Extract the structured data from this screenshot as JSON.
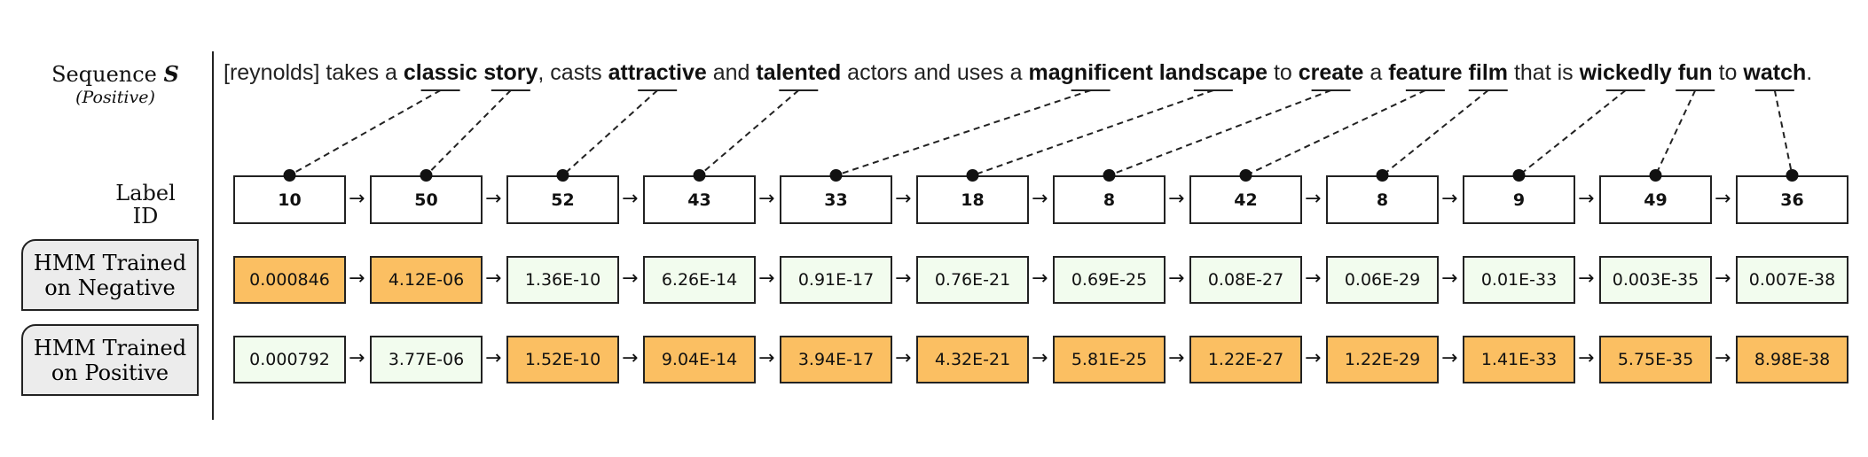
{
  "row_labels": {
    "sequence_main": "Sequence",
    "sequence_symbol": "S",
    "sequence_sub": "(Positive)",
    "label_id_line1": "Label",
    "label_id_line2": "ID",
    "hmm_negative_line1": "HMM Trained",
    "hmm_negative_line2": "on Negative",
    "hmm_positive_line1": "HMM Trained",
    "hmm_positive_line2": "on Positive"
  },
  "sentence": [
    {
      "text": "[reynolds] takes a ",
      "bold": false
    },
    {
      "text": "classic",
      "bold": true,
      "link": 0
    },
    {
      "text": " ",
      "bold": false
    },
    {
      "text": "story",
      "bold": true,
      "link": 1
    },
    {
      "text": ", casts ",
      "bold": false
    },
    {
      "text": "attractive",
      "bold": true,
      "link": 2
    },
    {
      "text": " and ",
      "bold": false
    },
    {
      "text": "talented",
      "bold": true,
      "link": 3
    },
    {
      "text": " actors and uses  a ",
      "bold": false
    },
    {
      "text": "magnificent",
      "bold": true,
      "link": 4
    },
    {
      "text": " ",
      "bold": false
    },
    {
      "text": "landscape",
      "bold": true,
      "link": 5
    },
    {
      "text": " to ",
      "bold": false
    },
    {
      "text": "create",
      "bold": true,
      "link": 6
    },
    {
      "text": " a ",
      "bold": false
    },
    {
      "text": "feature",
      "bold": true,
      "link": 7
    },
    {
      "text": " ",
      "bold": false
    },
    {
      "text": "film",
      "bold": true,
      "link": 8
    },
    {
      "text": " that is ",
      "bold": false
    },
    {
      "text": "wickedly",
      "bold": true,
      "link": 9
    },
    {
      "text": " ",
      "bold": false
    },
    {
      "text": "fun",
      "bold": true,
      "link": 10
    },
    {
      "text": " to ",
      "bold": false
    },
    {
      "text": "watch",
      "bold": true,
      "link": 11
    },
    {
      "text": ".",
      "bold": false
    }
  ],
  "label_ids": [
    "10",
    "50",
    "52",
    "43",
    "33",
    "18",
    "8",
    "42",
    "8",
    "9",
    "49",
    "36"
  ],
  "hmm_negative": [
    {
      "value": "0.000846",
      "highlight": true
    },
    {
      "value": "4.12E-06",
      "highlight": true
    },
    {
      "value": "1.36E-10",
      "highlight": false
    },
    {
      "value": "6.26E-14",
      "highlight": false
    },
    {
      "value": "0.91E-17",
      "highlight": false
    },
    {
      "value": "0.76E-21",
      "highlight": false
    },
    {
      "value": "0.69E-25",
      "highlight": false
    },
    {
      "value": "0.08E-27",
      "highlight": false
    },
    {
      "value": "0.06E-29",
      "highlight": false
    },
    {
      "value": "0.01E-33",
      "highlight": false
    },
    {
      "value": "0.003E-35",
      "highlight": false
    },
    {
      "value": "0.007E-38",
      "highlight": false
    }
  ],
  "hmm_positive": [
    {
      "value": "0.000792",
      "highlight": false
    },
    {
      "value": "3.77E-06",
      "highlight": false
    },
    {
      "value": "1.52E-10",
      "highlight": true
    },
    {
      "value": "9.04E-14",
      "highlight": true
    },
    {
      "value": "3.94E-17",
      "highlight": true
    },
    {
      "value": "4.32E-21",
      "highlight": true
    },
    {
      "value": "5.81E-25",
      "highlight": true
    },
    {
      "value": "1.22E-27",
      "highlight": true
    },
    {
      "value": "1.22E-29",
      "highlight": true
    },
    {
      "value": "1.41E-33",
      "highlight": true
    },
    {
      "value": "5.75E-35",
      "highlight": true
    },
    {
      "value": "8.98E-38",
      "highlight": true
    }
  ],
  "arrow_glyph": "→",
  "colors": {
    "highlight": "#fbbf62",
    "normal": "#f2fcee",
    "line": "#222222"
  }
}
